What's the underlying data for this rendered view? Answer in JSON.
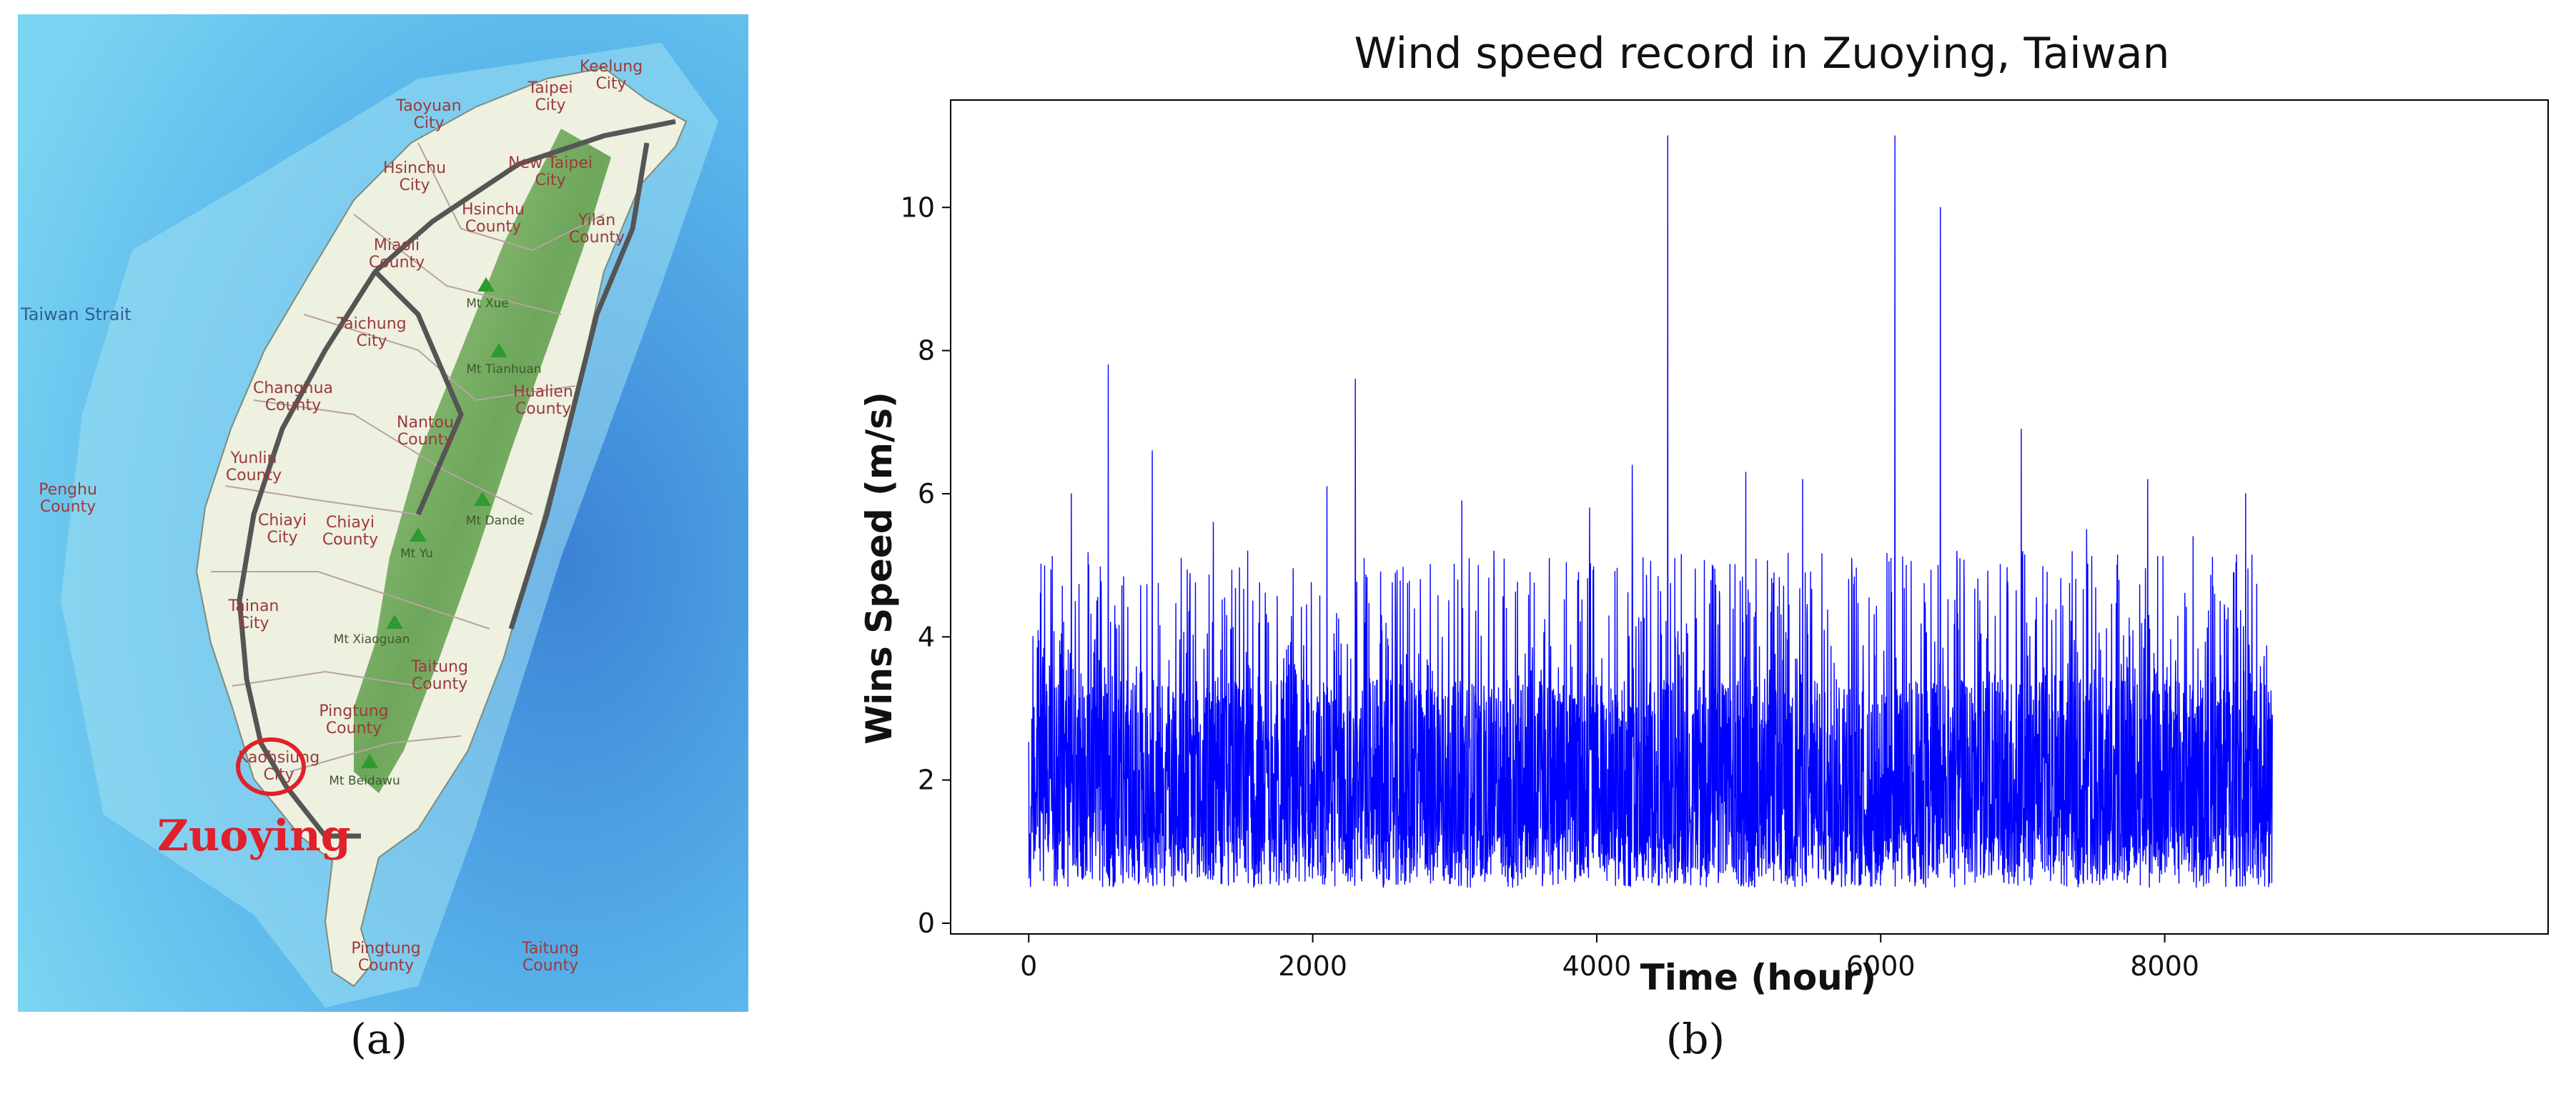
{
  "figure": {
    "panel_a_caption": "(a)",
    "panel_b_caption": "(b)"
  },
  "map": {
    "sea_label": "Taiwan Strait",
    "highlight_label": "Zuoying",
    "highlight_color": "#e0202a",
    "land_color": "#e8ecd9",
    "mountain_color": "#6fae5a",
    "sea_color": "#4fb4e6",
    "places": [
      {
        "name": "Keelung City",
        "lines": [
          "Keelung",
          "City"
        ]
      },
      {
        "name": "Taipei City",
        "lines": [
          "Taipei",
          "City"
        ]
      },
      {
        "name": "Taoyuan City",
        "lines": [
          "Taoyuan",
          "City"
        ]
      },
      {
        "name": "Hsinchu City",
        "lines": [
          "Hsinchu",
          "City"
        ]
      },
      {
        "name": "New Taipei City",
        "lines": [
          "New Taipei",
          "City"
        ]
      },
      {
        "name": "Hsinchu County",
        "lines": [
          "Hsinchu",
          "County"
        ]
      },
      {
        "name": "Yilan County",
        "lines": [
          "Yilan",
          "County"
        ]
      },
      {
        "name": "Miaoli County",
        "lines": [
          "Miaoli",
          "County"
        ]
      },
      {
        "name": "Taichung City",
        "lines": [
          "Taichung",
          "City"
        ]
      },
      {
        "name": "Changhua County",
        "lines": [
          "Changhua",
          "County"
        ]
      },
      {
        "name": "Nantou County",
        "lines": [
          "Nantou",
          "County"
        ]
      },
      {
        "name": "Hualien County",
        "lines": [
          "Hualien",
          "County"
        ]
      },
      {
        "name": "Yunlin County",
        "lines": [
          "Yunlin",
          "County"
        ]
      },
      {
        "name": "Penghu County",
        "lines": [
          "Penghu",
          "County"
        ]
      },
      {
        "name": "Chiayi City",
        "lines": [
          "Chiayi",
          "City"
        ]
      },
      {
        "name": "Chiayi County",
        "lines": [
          "Chiayi",
          "County"
        ]
      },
      {
        "name": "Tainan City",
        "lines": [
          "Tainan",
          "City"
        ]
      },
      {
        "name": "Taitung County",
        "lines": [
          "Taitung",
          "County"
        ]
      },
      {
        "name": "Pingtung County",
        "lines": [
          "Pingtung",
          "County"
        ]
      },
      {
        "name": "Kaohsiung City",
        "lines": [
          "Kaohsiung",
          "City"
        ]
      },
      {
        "name": "Pingtung County (south)",
        "lines": [
          "Pingtung",
          "County"
        ]
      },
      {
        "name": "Taitung County (south)",
        "lines": [
          "Taitung",
          "County"
        ]
      }
    ],
    "peaks": [
      "Mt Xue",
      "Mt Tianhuan",
      "Mt Dande",
      "Mt Yu",
      "Mt Xiaoguan",
      "Mt Beidawu"
    ]
  },
  "chart_data": {
    "type": "line",
    "title": "Wind speed record in Zuoying, Taiwan",
    "xlabel": "Time (hour)",
    "ylabel": "Wins Speed (m/s)",
    "xlim": [
      -550,
      10700
    ],
    "ylim": [
      -0.15,
      11.5
    ],
    "xticks": [
      0,
      2000,
      4000,
      6000,
      8000
    ],
    "yticks": [
      0,
      2,
      4,
      6,
      8,
      10
    ],
    "grid": false,
    "legend": "none",
    "series": [
      {
        "color": "#0000ff",
        "n_hours": 8760,
        "typical_min": 0.5,
        "typical_range": [
          0.5,
          4.5
        ],
        "peaks": [
          {
            "x": 560,
            "y": 7.8
          },
          {
            "x": 870,
            "y": 6.6
          },
          {
            "x": 2300,
            "y": 7.6
          },
          {
            "x": 4500,
            "y": 11.0
          },
          {
            "x": 4250,
            "y": 6.4
          },
          {
            "x": 5050,
            "y": 6.3
          },
          {
            "x": 6100,
            "y": 11.0
          },
          {
            "x": 6420,
            "y": 10.0
          },
          {
            "x": 6420,
            "y": 9.5
          },
          {
            "x": 6990,
            "y": 6.9
          },
          {
            "x": 7880,
            "y": 6.2
          },
          {
            "x": 8570,
            "y": 6.0
          },
          {
            "x": 300,
            "y": 6.0
          },
          {
            "x": 1300,
            "y": 5.6
          },
          {
            "x": 2100,
            "y": 6.1
          },
          {
            "x": 3050,
            "y": 5.9
          },
          {
            "x": 3950,
            "y": 5.8
          },
          {
            "x": 5450,
            "y": 6.2
          },
          {
            "x": 7450,
            "y": 5.5
          },
          {
            "x": 8200,
            "y": 5.4
          }
        ]
      }
    ]
  }
}
